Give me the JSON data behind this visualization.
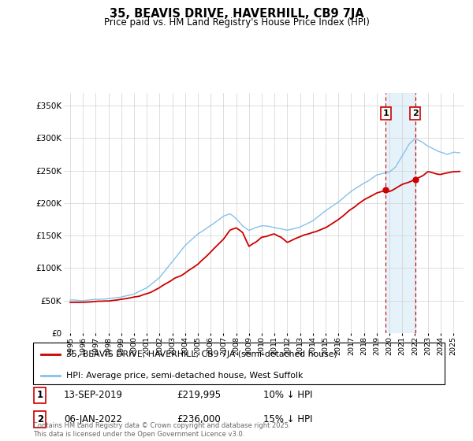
{
  "title": "35, BEAVIS DRIVE, HAVERHILL, CB9 7JA",
  "subtitle": "Price paid vs. HM Land Registry's House Price Index (HPI)",
  "legend_line1": "35, BEAVIS DRIVE, HAVERHILL, CB9 7JA (semi-detached house)",
  "legend_line2": "HPI: Average price, semi-detached house, West Suffolk",
  "annotation1_label": "1",
  "annotation1_date": "13-SEP-2019",
  "annotation1_price": "£219,995",
  "annotation1_hpi": "10% ↓ HPI",
  "annotation2_label": "2",
  "annotation2_date": "06-JAN-2022",
  "annotation2_price": "£236,000",
  "annotation2_hpi": "15% ↓ HPI",
  "footnote": "Contains HM Land Registry data © Crown copyright and database right 2025.\nThis data is licensed under the Open Government Licence v3.0.",
  "hpi_color": "#85c1e9",
  "price_color": "#cc0000",
  "vline_color": "#cc0000",
  "shade_color": "#d6eaf8",
  "ylim": [
    0,
    370000
  ],
  "yticks": [
    0,
    50000,
    100000,
    150000,
    200000,
    250000,
    300000,
    350000
  ],
  "ytick_labels": [
    "£0",
    "£50K",
    "£100K",
    "£150K",
    "£200K",
    "£250K",
    "£300K",
    "£350K"
  ],
  "sale1_x": 2019.71,
  "sale1_y": 219995,
  "sale2_x": 2022.02,
  "sale2_y": 236000,
  "xlim_left": 1994.5,
  "xlim_right": 2025.8,
  "hpi_anchors_x": [
    1995,
    1996,
    1997,
    1998,
    1999,
    2000,
    2001,
    2002,
    2003,
    2004,
    2005,
    2006,
    2007,
    2007.5,
    2008,
    2008.5,
    2009,
    2009.5,
    2010,
    2011,
    2012,
    2013,
    2014,
    2015,
    2016,
    2017,
    2018,
    2019,
    2019.5,
    2020,
    2020.5,
    2021,
    2021.5,
    2022,
    2022.5,
    2023,
    2023.5,
    2024,
    2024.5,
    2025
  ],
  "hpi_anchors_y": [
    50000,
    50500,
    52000,
    53000,
    55000,
    60000,
    70000,
    85000,
    110000,
    135000,
    152000,
    165000,
    180000,
    183000,
    175000,
    165000,
    158000,
    162000,
    165000,
    163000,
    158000,
    163000,
    172000,
    188000,
    202000,
    218000,
    230000,
    243000,
    246000,
    248000,
    255000,
    272000,
    290000,
    300000,
    295000,
    288000,
    283000,
    278000,
    275000,
    278000
  ],
  "price_anchors_x": [
    1995,
    1996,
    1997,
    1998,
    1999,
    2000,
    2001,
    2002,
    2003,
    2004,
    2005,
    2006,
    2007,
    2007.5,
    2008,
    2008.5,
    2009,
    2009.5,
    2010,
    2011,
    2011.5,
    2012,
    2013,
    2014,
    2015,
    2016,
    2017,
    2018,
    2019,
    2019.71,
    2020,
    2021,
    2022.02,
    2022.5,
    2023,
    2024,
    2025
  ],
  "price_anchors_y": [
    47000,
    47500,
    49000,
    49500,
    51000,
    55000,
    60000,
    70000,
    82000,
    92000,
    105000,
    125000,
    145000,
    158000,
    162000,
    155000,
    133000,
    140000,
    148000,
    152000,
    148000,
    140000,
    148000,
    155000,
    162000,
    175000,
    190000,
    205000,
    215000,
    219995,
    218000,
    228000,
    236000,
    242000,
    248000,
    244000,
    248000
  ]
}
